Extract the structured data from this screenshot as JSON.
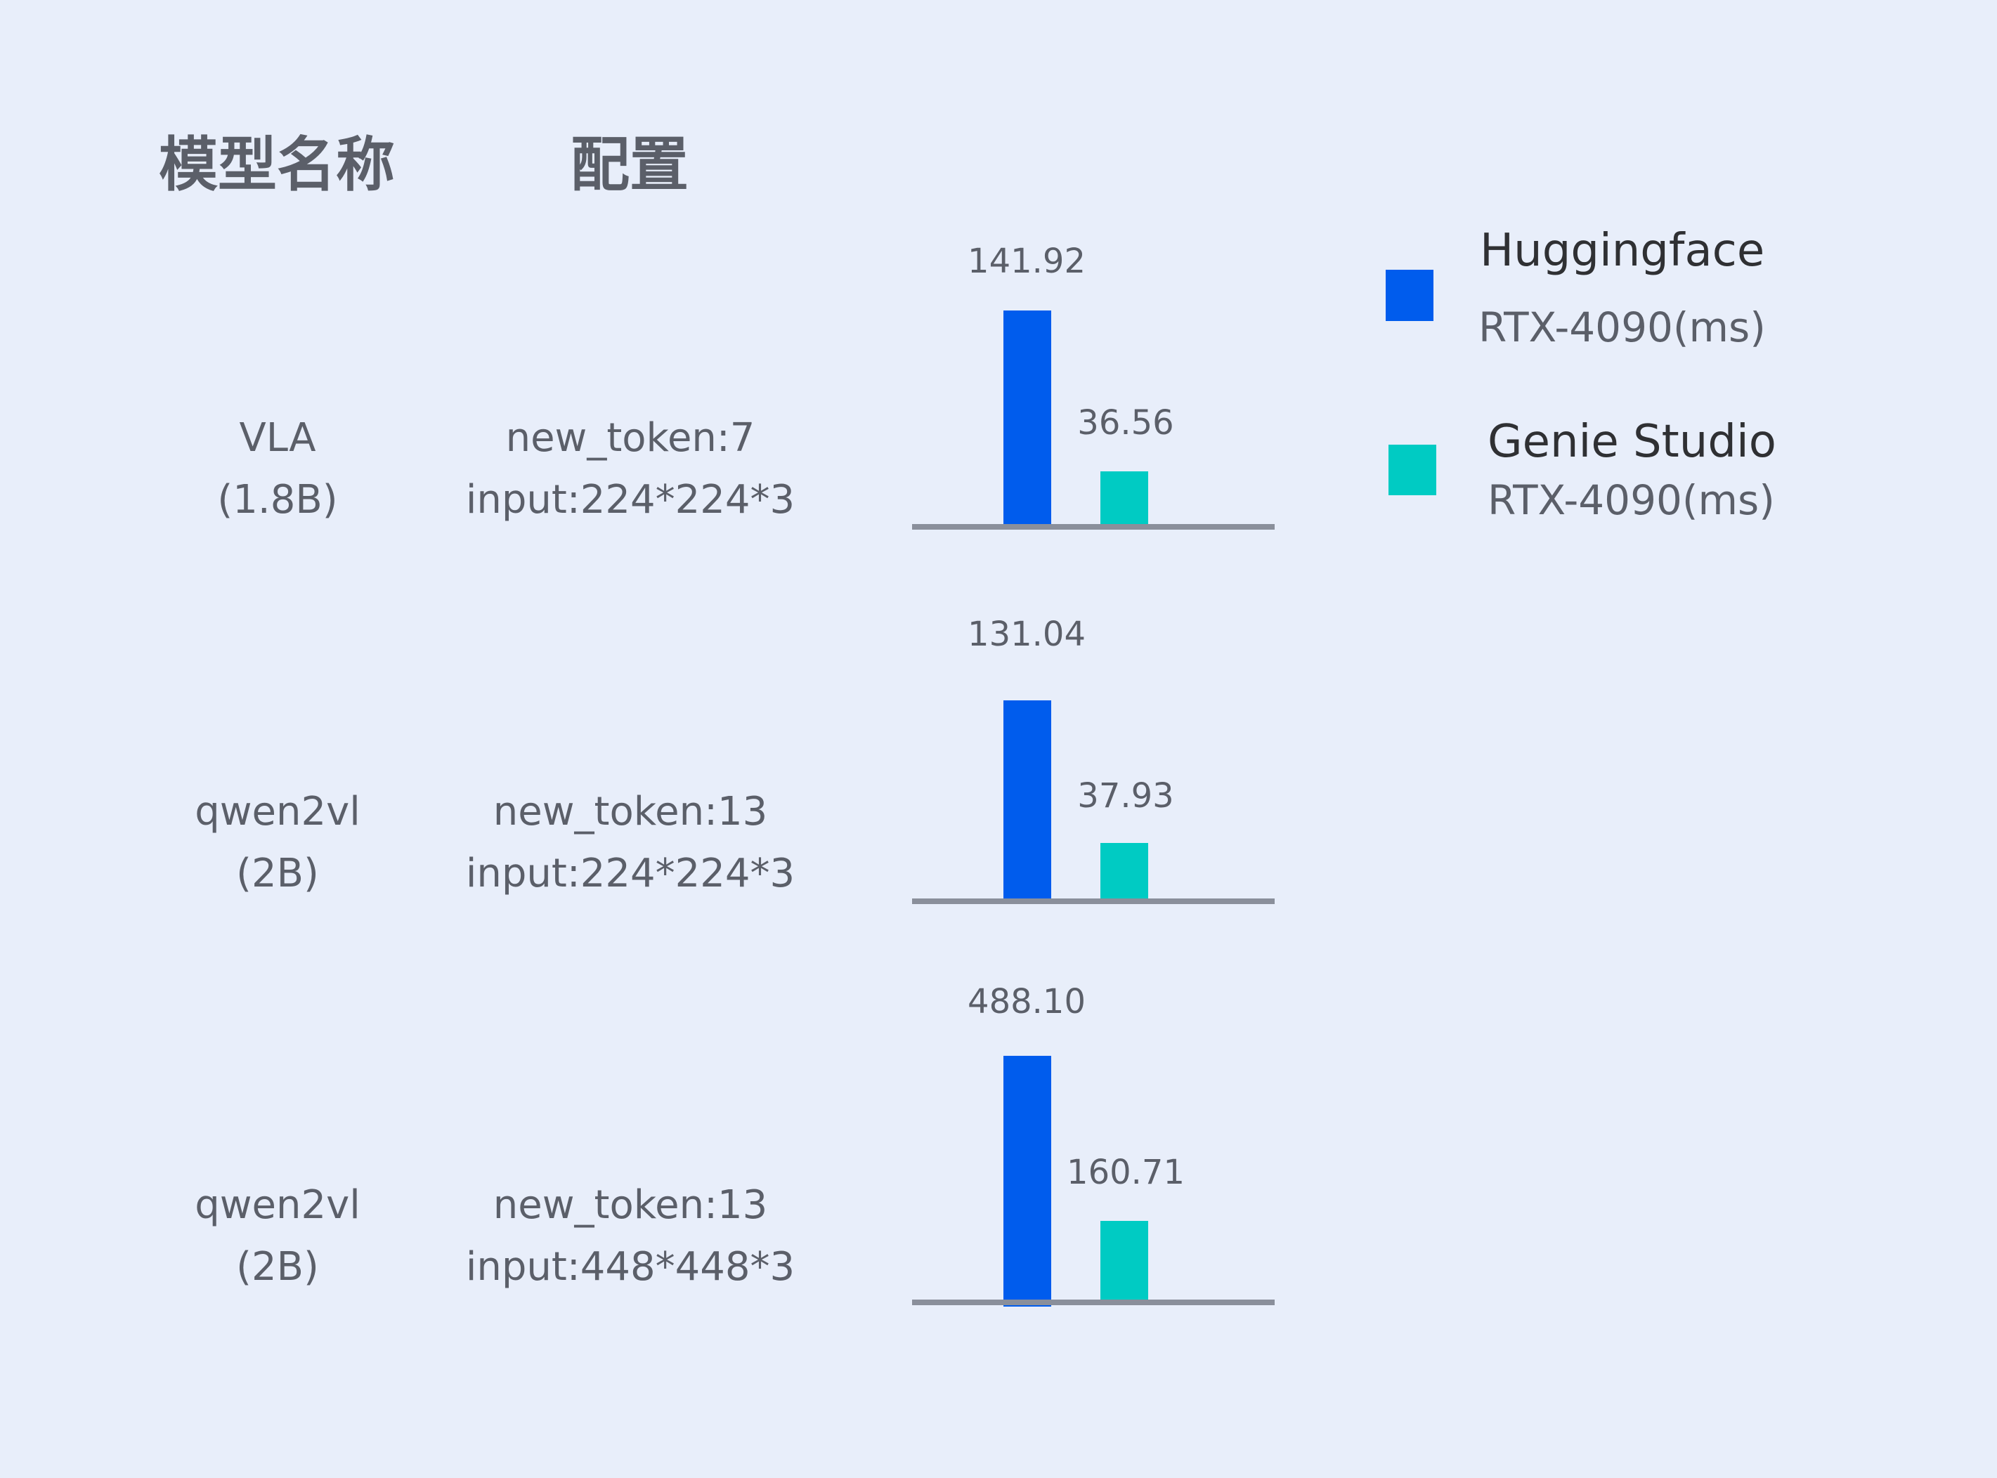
{
  "headers": {
    "model": "模型名称",
    "config": "配置"
  },
  "colors": {
    "huggingface": "#005ced",
    "genie": "#00cbc3",
    "axis": "#8a8f9b",
    "background": "#e8eefa"
  },
  "legend": [
    {
      "name": "Huggingface",
      "sub": "RTX-4090(ms)",
      "color": "#005ced"
    },
    {
      "name": "Genie Studio",
      "sub": "RTX-4090(ms)",
      "color": "#00cbc3"
    }
  ],
  "rows": [
    {
      "model": "VLA",
      "size": "(1.8B)",
      "config1": "new_token:7",
      "config2": "input:224*224*3"
    },
    {
      "model": "qwen2vl",
      "size": "(2B)",
      "config1": "new_token:13",
      "config2": "input:224*224*3"
    },
    {
      "model": "qwen2vl",
      "size": "(2B)",
      "config1": "new_token:13",
      "config2": "input:448*448*3"
    }
  ],
  "chart_data": {
    "type": "bar",
    "categories": [
      "VLA (1.8B)",
      "qwen2vl (2B) 224",
      "qwen2vl (2B) 448"
    ],
    "series": [
      {
        "name": "Huggingface RTX-4090(ms)",
        "values": [
          141.92,
          131.04,
          488.1
        ],
        "labels": [
          "141.92",
          "131.04",
          "488.10"
        ]
      },
      {
        "name": "Genie Studio RTX-4090(ms)",
        "values": [
          36.56,
          37.93,
          160.71
        ],
        "labels": [
          "36.56",
          "37.93",
          "160.71"
        ]
      }
    ],
    "grid": false,
    "legend_position": "right"
  }
}
